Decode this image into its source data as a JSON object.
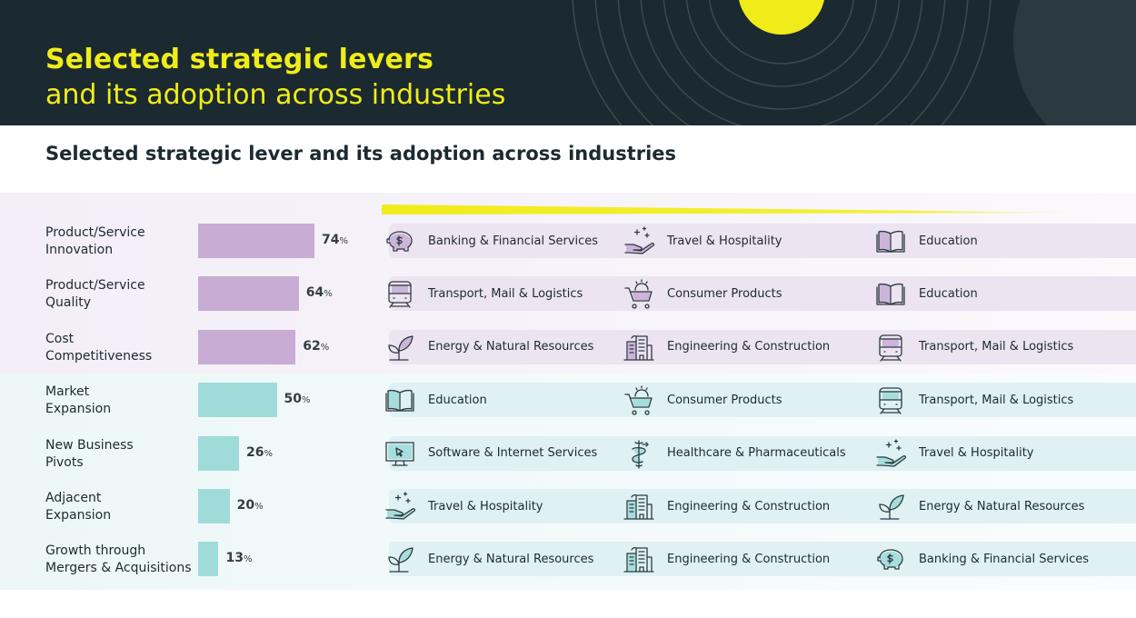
{
  "header": {
    "title_line1": "Selected strategic levers",
    "title_line2": "and its adoption across industries"
  },
  "subtitle": "Selected strategic lever and its adoption across industries",
  "colors": {
    "header_bg": "#1b2a30",
    "accent_yellow": "#f0ec1a",
    "bar_purple": "#c8acd3",
    "bar_teal": "#9fdbd9"
  },
  "chart_data": {
    "type": "bar",
    "orientation": "horizontal",
    "title": "Selected strategic lever and its adoption across industries",
    "unit": "%",
    "categories": [
      "Product/Service Innovation",
      "Product/Service Quality",
      "Cost Competitiveness",
      "Market Expansion",
      "New Business Pivots",
      "Adjacent Expansion",
      "Growth through Mergers & Acquisitions"
    ],
    "values": [
      74,
      64,
      62,
      50,
      26,
      20,
      13
    ],
    "xlim": [
      0,
      100
    ]
  },
  "levers": [
    {
      "line1": "Product/Service",
      "line2": "Innovation",
      "value": 74,
      "unit": "%",
      "group": "purple",
      "industries": [
        {
          "name": "Banking & Financial Services",
          "icon": "piggy-bank-icon"
        },
        {
          "name": "Travel & Hospitality",
          "icon": "hand-sparkle-icon"
        },
        {
          "name": "Education",
          "icon": "book-icon"
        }
      ]
    },
    {
      "line1": "Product/Service",
      "line2": "Quality",
      "value": 64,
      "unit": "%",
      "group": "purple",
      "industries": [
        {
          "name": "Transport, Mail & Logistics",
          "icon": "train-icon"
        },
        {
          "name": "Consumer Products",
          "icon": "cart-icon"
        },
        {
          "name": "Education",
          "icon": "book-icon"
        }
      ]
    },
    {
      "line1": "Cost",
      "line2": "Competitiveness",
      "value": 62,
      "unit": "%",
      "group": "purple",
      "industries": [
        {
          "name": "Energy & Natural Resources",
          "icon": "leaf-icon"
        },
        {
          "name": "Engineering & Construction",
          "icon": "buildings-icon"
        },
        {
          "name": "Transport, Mail & Logistics",
          "icon": "train-icon"
        }
      ]
    },
    {
      "line1": "Market",
      "line2": "Expansion",
      "value": 50,
      "unit": "%",
      "group": "teal",
      "industries": [
        {
          "name": "Education",
          "icon": "book-icon"
        },
        {
          "name": "Consumer Products",
          "icon": "cart-icon"
        },
        {
          "name": "Transport, Mail & Logistics",
          "icon": "train-icon"
        }
      ]
    },
    {
      "line1": "New Business",
      "line2": "Pivots",
      "value": 26,
      "unit": "%",
      "group": "teal",
      "industries": [
        {
          "name": "Software & Internet Services",
          "icon": "monitor-icon"
        },
        {
          "name": "Healthcare & Pharmaceuticals",
          "icon": "caduceus-icon"
        },
        {
          "name": "Travel & Hospitality",
          "icon": "hand-sparkle-icon"
        }
      ]
    },
    {
      "line1": "Adjacent",
      "line2": "Expansion",
      "value": 20,
      "unit": "%",
      "group": "teal",
      "industries": [
        {
          "name": "Travel & Hospitality",
          "icon": "hand-sparkle-icon"
        },
        {
          "name": "Engineering & Construction",
          "icon": "buildings-icon"
        },
        {
          "name": "Energy & Natural Resources",
          "icon": "leaf-icon"
        }
      ]
    },
    {
      "line1": "Growth through",
      "line2": "Mergers & Acquisitions",
      "value": 13,
      "unit": "%",
      "group": "teal",
      "industries": [
        {
          "name": "Energy & Natural Resources",
          "icon": "leaf-icon"
        },
        {
          "name": "Engineering & Construction",
          "icon": "buildings-icon"
        },
        {
          "name": "Banking & Financial Services",
          "icon": "piggy-bank-icon"
        }
      ]
    }
  ]
}
